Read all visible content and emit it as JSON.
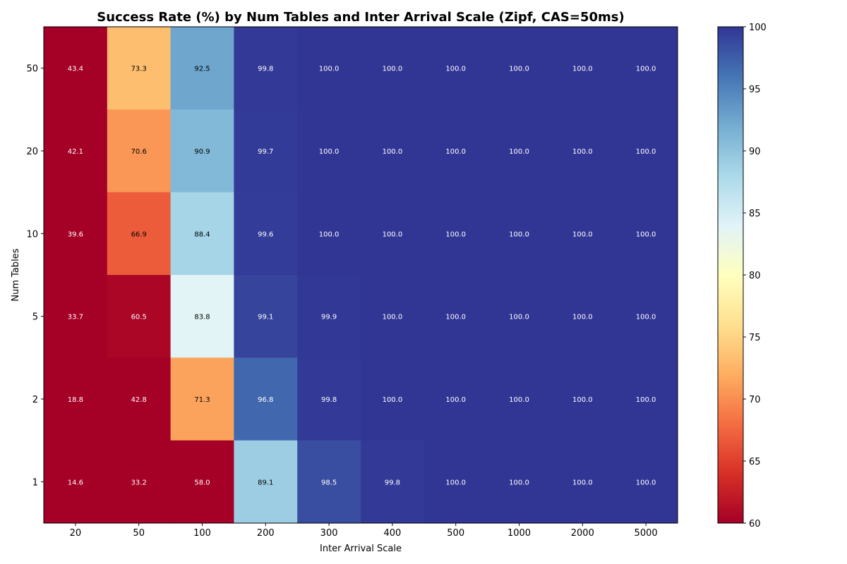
{
  "chart_data": {
    "type": "heatmap",
    "title": "Success Rate (%) by Num Tables and Inter Arrival Scale (Zipf, CAS=50ms)",
    "xlabel": "Inter Arrival Scale",
    "ylabel": "Num Tables",
    "x_categories": [
      "20",
      "50",
      "100",
      "200",
      "300",
      "400",
      "500",
      "1000",
      "2000",
      "5000"
    ],
    "y_categories": [
      "50",
      "20",
      "10",
      "5",
      "2",
      "1"
    ],
    "values": [
      [
        43.4,
        73.3,
        92.5,
        99.8,
        100.0,
        100.0,
        100.0,
        100.0,
        100.0,
        100.0
      ],
      [
        42.1,
        70.6,
        90.9,
        99.7,
        100.0,
        100.0,
        100.0,
        100.0,
        100.0,
        100.0
      ],
      [
        39.6,
        66.9,
        88.4,
        99.6,
        100.0,
        100.0,
        100.0,
        100.0,
        100.0,
        100.0
      ],
      [
        33.7,
        60.5,
        83.8,
        99.1,
        99.9,
        100.0,
        100.0,
        100.0,
        100.0,
        100.0
      ],
      [
        18.8,
        42.8,
        71.3,
        96.8,
        99.8,
        100.0,
        100.0,
        100.0,
        100.0,
        100.0
      ],
      [
        14.6,
        33.2,
        58.0,
        89.1,
        98.5,
        99.8,
        100.0,
        100.0,
        100.0,
        100.0
      ]
    ],
    "colormap": "RdYlBu",
    "colorbar": {
      "vmin": 60,
      "vmax": 100,
      "ticks": [
        "60",
        "65",
        "70",
        "75",
        "80",
        "85",
        "90",
        "95",
        "100"
      ]
    },
    "grid": false
  }
}
